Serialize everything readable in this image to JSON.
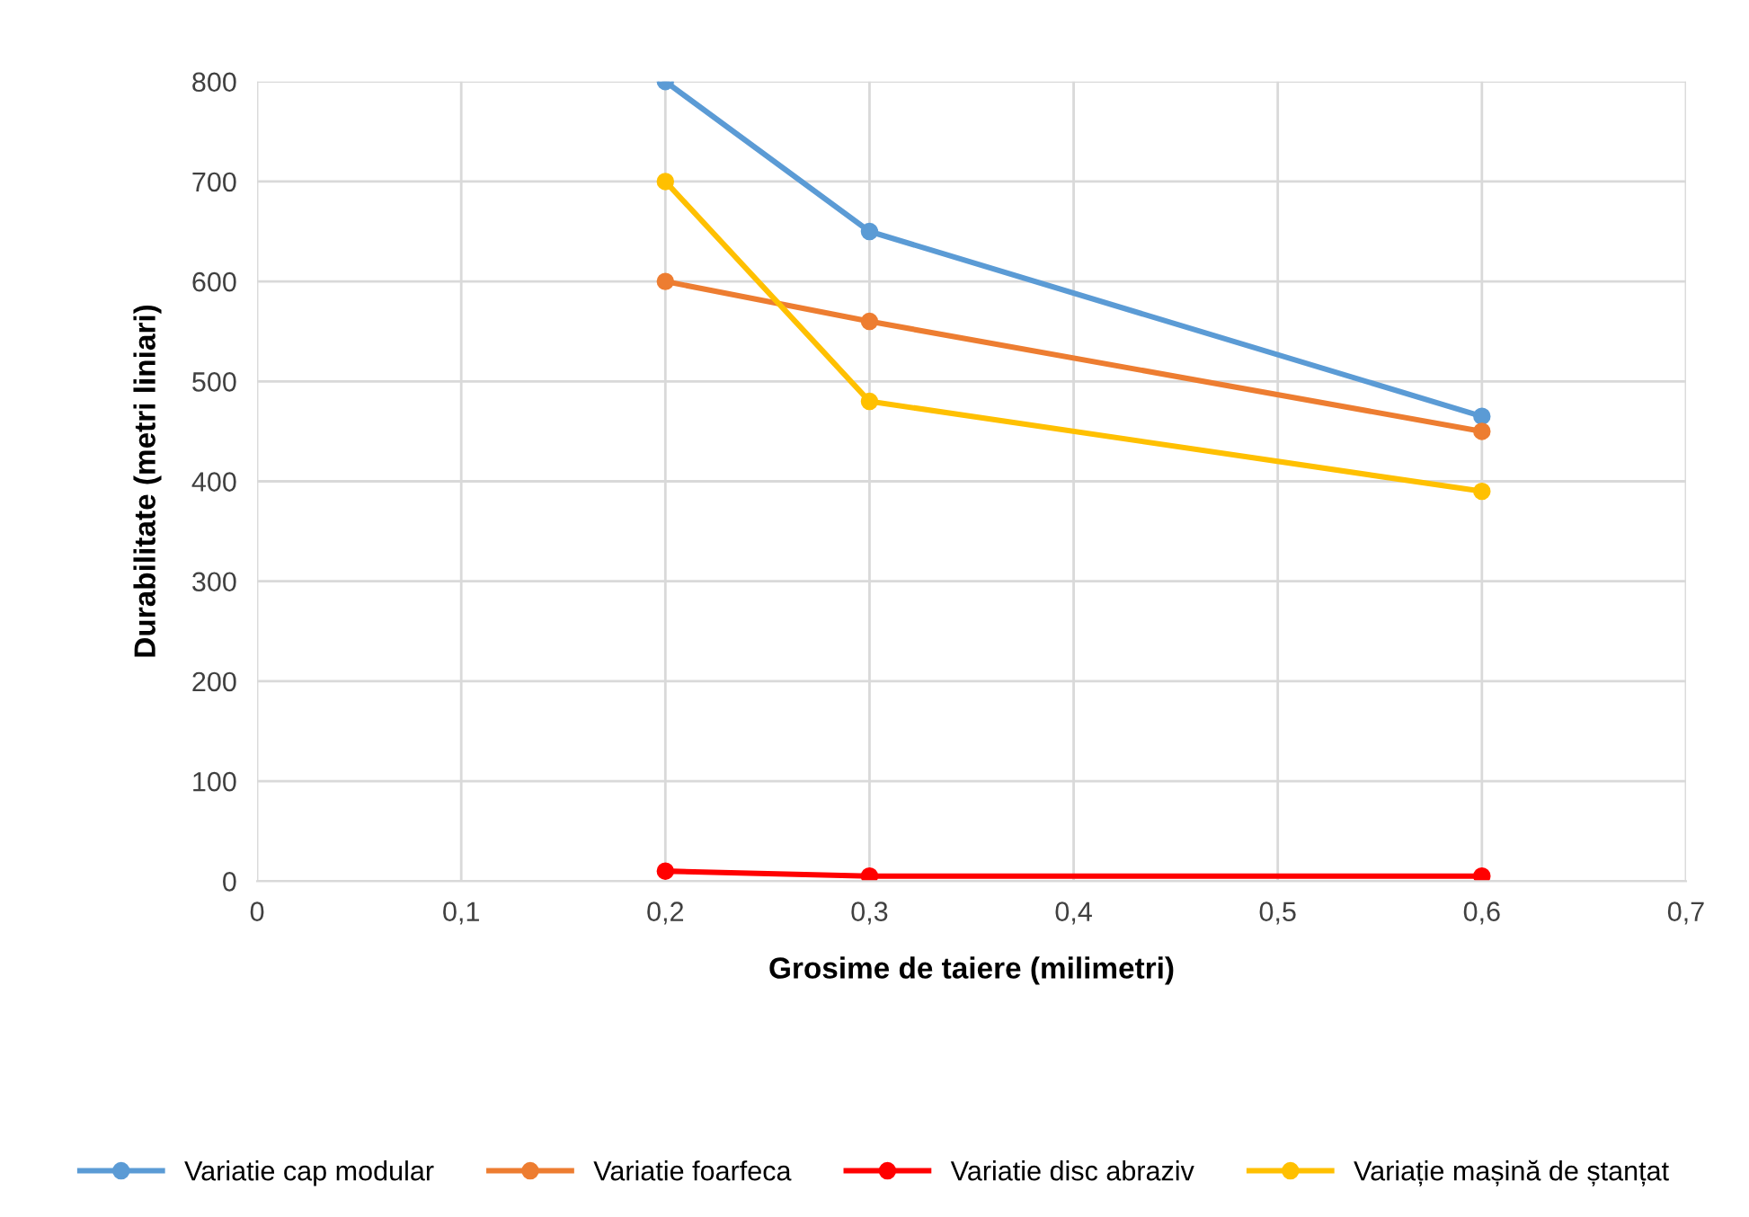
{
  "chart_data": {
    "type": "line",
    "xlabel": "Grosime de taiere (milimetri)",
    "ylabel": "Durabilitate (metri liniari)",
    "x": [
      0.2,
      0.3,
      0.6
    ],
    "xlim": [
      0,
      0.7
    ],
    "xticks": [
      {
        "value": 0,
        "label": "0"
      },
      {
        "value": 0.1,
        "label": "0,1"
      },
      {
        "value": 0.2,
        "label": "0,2"
      },
      {
        "value": 0.3,
        "label": "0,3"
      },
      {
        "value": 0.4,
        "label": "0,4"
      },
      {
        "value": 0.5,
        "label": "0,5"
      },
      {
        "value": 0.6,
        "label": "0,6"
      },
      {
        "value": 0.7,
        "label": "0,7"
      }
    ],
    "ylim": [
      0,
      800
    ],
    "yticks": [
      0,
      100,
      200,
      300,
      400,
      500,
      600,
      700,
      800
    ],
    "grid": true,
    "legend": "bottom",
    "marker": "circle",
    "line_style": "solid",
    "series": [
      {
        "name": "Variatie cap modular",
        "color": "#5b9bd5",
        "values": [
          800,
          650,
          465
        ]
      },
      {
        "name": "Variatie foarfeca",
        "color": "#ed7d31",
        "values": [
          600,
          560,
          450
        ]
      },
      {
        "name": "Variatie disc abraziv",
        "color": "#ff0000",
        "values": [
          10,
          5,
          5
        ]
      },
      {
        "name": "Variație mașină de ștanțat",
        "color": "#ffc000",
        "values": [
          700,
          480,
          390
        ]
      }
    ]
  }
}
